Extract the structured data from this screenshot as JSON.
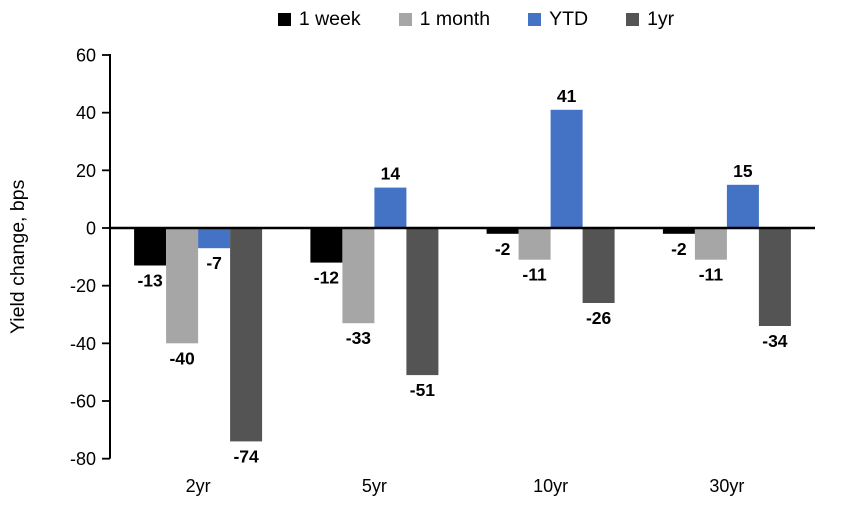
{
  "chart_data": {
    "type": "bar",
    "title": "",
    "ylabel": "Yield change, bps",
    "xlabel": "",
    "categories": [
      "2yr",
      "5yr",
      "10yr",
      "30yr"
    ],
    "series": [
      {
        "name": "1 week",
        "color": "#000000",
        "values": [
          -13,
          -12,
          -2,
          -2
        ]
      },
      {
        "name": "1 month",
        "color": "#A6A6A6",
        "values": [
          -40,
          -33,
          -11,
          -11
        ]
      },
      {
        "name": "YTD",
        "color": "#4472C4",
        "values": [
          -7,
          14,
          41,
          15
        ]
      },
      {
        "name": "1yr",
        "color": "#545454",
        "values": [
          -74,
          -51,
          -26,
          -34
        ]
      }
    ],
    "ylim": [
      -80,
      60
    ],
    "yticks": [
      60,
      40,
      20,
      0,
      -20,
      -40,
      -60,
      -80
    ],
    "grid": false,
    "legend_position": "top",
    "value_labels": true,
    "axis_color": "#000000"
  }
}
